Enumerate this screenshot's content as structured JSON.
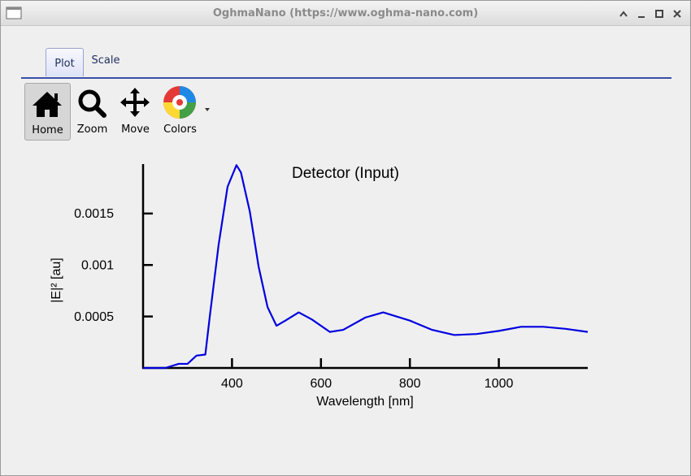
{
  "window": {
    "title": "OghmaNano (https://www.oghma-nano.com)"
  },
  "tabs": [
    "Plot",
    "Scale"
  ],
  "toolbar": [
    "Home",
    "Zoom",
    "Move",
    "Colors"
  ],
  "chart_data": {
    "type": "line",
    "title": "Detector (Input)",
    "x_label": "Wavelength [nm]",
    "y_label": "|E|² [au]",
    "x": [
      200,
      250,
      280,
      300,
      320,
      340,
      350,
      370,
      390,
      410,
      420,
      440,
      460,
      480,
      500,
      520,
      550,
      580,
      620,
      650,
      700,
      740,
      800,
      850,
      900,
      950,
      1000,
      1050,
      1100,
      1150,
      1200
    ],
    "series": [
      {
        "name": "Detector (Input)",
        "color": "#0000e0",
        "values": [
          0,
          0,
          4e-05,
          4e-05,
          0.00012,
          0.00013,
          0.0005,
          0.0012,
          0.00176,
          0.00197,
          0.0019,
          0.00152,
          0.00098,
          0.00059,
          0.00041,
          0.00046,
          0.00054,
          0.00047,
          0.00035,
          0.00037,
          0.00049,
          0.00054,
          0.00046,
          0.00037,
          0.00032,
          0.00033,
          0.00036,
          0.0004,
          0.0004,
          0.00038,
          0.00035
        ]
      }
    ],
    "xlim": [
      200,
      1200
    ],
    "ylim": [
      0,
      0.00198
    ],
    "xticks": [
      400,
      600,
      800,
      1000
    ],
    "yticks": [
      0.0005,
      0.001,
      0.0015
    ]
  }
}
